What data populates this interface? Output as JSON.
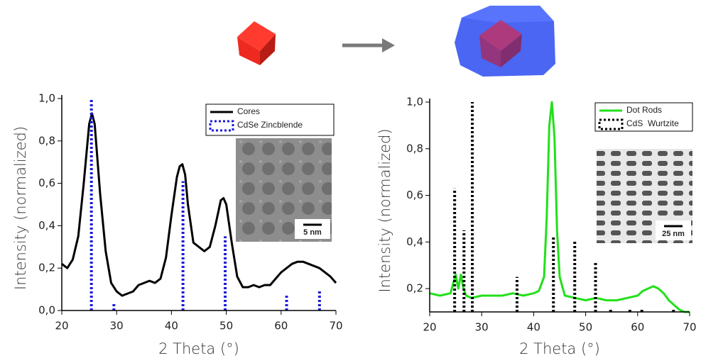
{
  "chart_data": [
    {
      "type": "line",
      "x_label": "2 Theta (°)",
      "y_label": "Intensity (normalized)",
      "xlim": [
        20,
        70
      ],
      "xticks": [
        20,
        30,
        40,
        50,
        60,
        70
      ],
      "ylim": [
        0,
        1.0
      ],
      "yticks": [
        {
          "value": 0,
          "label": "0,0"
        },
        {
          "value": 0.2,
          "label": "0,2"
        },
        {
          "value": 0.4,
          "label": "0,4"
        },
        {
          "value": 0.6,
          "label": "0,6"
        },
        {
          "value": 0.8,
          "label": "0,8"
        },
        {
          "value": 1.0,
          "label": "1,0"
        }
      ],
      "legend": "top right",
      "inset_scale": "5 nm",
      "series": [
        {
          "name": "Cores",
          "color": "#000000",
          "style": "solid",
          "x": [
            20,
            21,
            22,
            23,
            24,
            25,
            25.5,
            26,
            27,
            28,
            29,
            30,
            31,
            32,
            33,
            34,
            35,
            36,
            37,
            38,
            39,
            40,
            41,
            41.5,
            42,
            42.5,
            43,
            44,
            45,
            46,
            47,
            48,
            49,
            49.5,
            50,
            51,
            52,
            53,
            54,
            55,
            56,
            57,
            58,
            59,
            60,
            61,
            62,
            63,
            64,
            65,
            66,
            67,
            68,
            69,
            70
          ],
          "values": [
            0.22,
            0.2,
            0.24,
            0.35,
            0.6,
            0.88,
            0.93,
            0.88,
            0.55,
            0.28,
            0.13,
            0.09,
            0.07,
            0.08,
            0.09,
            0.12,
            0.13,
            0.14,
            0.13,
            0.15,
            0.25,
            0.45,
            0.63,
            0.68,
            0.69,
            0.64,
            0.5,
            0.32,
            0.3,
            0.28,
            0.3,
            0.4,
            0.52,
            0.53,
            0.5,
            0.32,
            0.16,
            0.11,
            0.11,
            0.12,
            0.11,
            0.12,
            0.12,
            0.15,
            0.18,
            0.2,
            0.22,
            0.23,
            0.23,
            0.22,
            0.21,
            0.2,
            0.18,
            0.16,
            0.13
          ]
        },
        {
          "name": "CdSe Zincblende",
          "color": "#1a1adb",
          "style": "sticks",
          "x": [
            25.4,
            29.5,
            42.1,
            49.8,
            61.0,
            67.0
          ],
          "values": [
            1.0,
            0.03,
            0.61,
            0.35,
            0.07,
            0.1
          ]
        }
      ]
    },
    {
      "type": "line",
      "x_label": "2 Theta (°)",
      "y_label": "Intensity (normalized)",
      "xlim": [
        20,
        70
      ],
      "xticks": [
        20,
        30,
        40,
        50,
        60,
        70
      ],
      "ylim": [
        0.1,
        1.0
      ],
      "yticks": [
        {
          "value": 0.2,
          "label": "0,2"
        },
        {
          "value": 0.4,
          "label": "0,4"
        },
        {
          "value": 0.6,
          "label": "0,6"
        },
        {
          "value": 0.8,
          "label": "0,8"
        },
        {
          "value": 1.0,
          "label": "1,0"
        }
      ],
      "legend": "top right",
      "inset_scale": "25 nm",
      "series": [
        {
          "name": "Dot Rods",
          "color": "#22e01a",
          "style": "solid",
          "x": [
            20,
            22,
            24,
            24.5,
            25,
            25.5,
            26,
            26.5,
            27,
            28,
            30,
            32,
            34,
            36,
            38,
            40,
            41,
            42,
            42.5,
            43,
            43.5,
            44,
            44.5,
            45,
            46,
            48,
            50,
            52,
            54,
            56,
            58,
            60,
            61,
            62,
            63,
            64,
            65,
            66,
            67,
            68,
            69,
            70
          ],
          "values": [
            0.18,
            0.17,
            0.18,
            0.22,
            0.26,
            0.2,
            0.26,
            0.2,
            0.17,
            0.16,
            0.17,
            0.17,
            0.17,
            0.18,
            0.17,
            0.18,
            0.19,
            0.25,
            0.5,
            0.9,
            1.0,
            0.85,
            0.45,
            0.25,
            0.17,
            0.16,
            0.15,
            0.16,
            0.15,
            0.15,
            0.16,
            0.17,
            0.19,
            0.2,
            0.21,
            0.2,
            0.18,
            0.15,
            0.13,
            0.11,
            0.1,
            0.1
          ]
        },
        {
          "name": "CdS  Wurtzite",
          "color": "#000000",
          "style": "sticks",
          "x": [
            24.8,
            26.6,
            28.2,
            36.8,
            43.8,
            47.9,
            51.9,
            54.8,
            58.5,
            60.8,
            66.9
          ],
          "values": [
            0.63,
            0.45,
            1.0,
            0.25,
            0.42,
            0.41,
            0.31,
            0.11,
            0.11,
            0.11,
            0.11
          ]
        }
      ]
    }
  ]
}
